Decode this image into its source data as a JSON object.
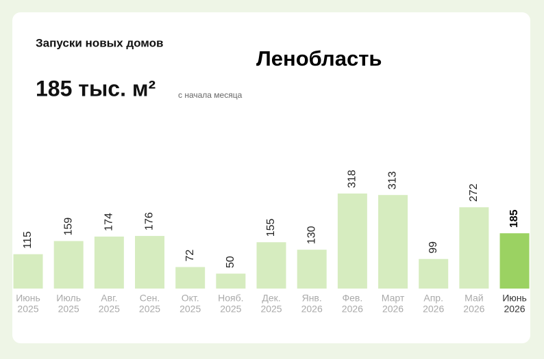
{
  "chart_data": {
    "type": "bar",
    "title": "Запуски новых домов",
    "region": "Ленобласть",
    "headline": "185 тыс. м²",
    "subtitle": "с начала месяца",
    "categories": [
      [
        "Июнь",
        "2025"
      ],
      [
        "Июль",
        "2025"
      ],
      [
        "Авг.",
        "2025"
      ],
      [
        "Сен.",
        "2025"
      ],
      [
        "Окт.",
        "2025"
      ],
      [
        "Нояб.",
        "2025"
      ],
      [
        "Дек.",
        "2025"
      ],
      [
        "Янв.",
        "2026"
      ],
      [
        "Фев.",
        "2026"
      ],
      [
        "Март",
        "2026"
      ],
      [
        "Апр.",
        "2026"
      ],
      [
        "Май",
        "2026"
      ],
      [
        "Июнь",
        "2026"
      ]
    ],
    "values": [
      115,
      159,
      174,
      176,
      72,
      50,
      155,
      130,
      318,
      313,
      99,
      272,
      185
    ],
    "color": "#d6ecbf",
    "highlight_color": "#9bd262",
    "highlight_index": 12
  }
}
